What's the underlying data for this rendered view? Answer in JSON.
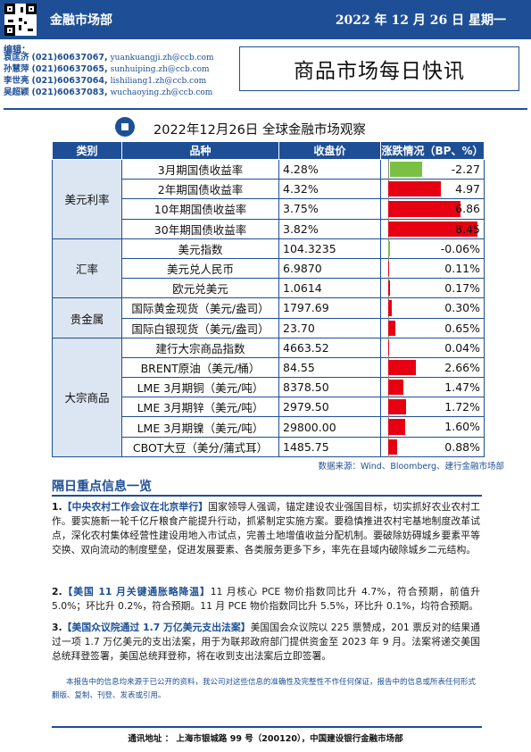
{
  "header": {
    "department": "金融市场部",
    "date": "2022 年 12 月 26 日  星期一"
  },
  "editors": {
    "label": "编辑：",
    "people": [
      {
        "name": "袁匡济",
        "phone": "(021)60637067,",
        "email": "yuankuangji.zh@ccb.com"
      },
      {
        "name": "孙慧萍",
        "phone": "(021)60637065,",
        "email": "sunhuiping.zh@ccb.com"
      },
      {
        "name": "李世亮",
        "phone": "(021)60637064,",
        "email": "lishiliang1.zh@ccb.com"
      },
      {
        "name": "吴超颖",
        "phone": "(021)60637083,",
        "email": "wuchaoying.zh@ccb.com"
      }
    ]
  },
  "report_title": "商品市场每日快讯",
  "table": {
    "title": "2022年12月26日 全球金融市场观察",
    "headers": [
      "类别",
      "品种",
      "收盘价",
      "涨跌情况（BP、%）"
    ],
    "bar_colors": {
      "positive": "#e60012",
      "negative": "#7ac143"
    },
    "groups": [
      {
        "category": "美元利率",
        "rows": [
          {
            "product": "3月期国债收益率",
            "close": "4.28%",
            "change_text": "-2.27",
            "change": -2.27
          },
          {
            "product": "2年期国债收益率",
            "close": "4.32%",
            "change_text": "4.97",
            "change": 4.97
          },
          {
            "product": "10年期国债收益率",
            "close": "3.75%",
            "change_text": "6.86",
            "change": 6.86
          },
          {
            "product": "30年期国债收益率",
            "close": "3.82%",
            "change_text": "8.45",
            "change": 8.45
          }
        ]
      },
      {
        "category": "汇率",
        "rows": [
          {
            "product": "美元指数",
            "close": "104.3235",
            "change_text": "-0.06%",
            "change": -0.06
          },
          {
            "product": "美元兑人民币",
            "close": "6.9870",
            "change_text": "0.11%",
            "change": 0.11
          },
          {
            "product": "欧元兑美元",
            "close": "1.0614",
            "change_text": "0.17%",
            "change": 0.17
          }
        ]
      },
      {
        "category": "贵金属",
        "rows": [
          {
            "product": "国际黄金现货（美元/盎司）",
            "close": "1797.69",
            "change_text": "0.30%",
            "change": 0.3
          },
          {
            "product": "国际白银现货（美元/盎司）",
            "close": "23.70",
            "change_text": "0.65%",
            "change": 0.65
          }
        ]
      },
      {
        "category": "大宗商品",
        "rows": [
          {
            "product": "建行大宗商品指数",
            "close": "4663.52",
            "change_text": "0.04%",
            "change": 0.04
          },
          {
            "product": "BRENT原油（美元/桶）",
            "close": "84.55",
            "change_text": "2.66%",
            "change": 2.66
          },
          {
            "product": "LME 3月期铜（美元/吨）",
            "close": "8378.50",
            "change_text": "1.47%",
            "change": 1.47
          },
          {
            "product": "LME 3月期锌（美元/吨）",
            "close": "2979.50",
            "change_text": "1.72%",
            "change": 1.72
          },
          {
            "product": "LME 3月期镍（美元/吨）",
            "close": "29800.00",
            "change_text": "1.60%",
            "change": 1.6
          },
          {
            "product": "CBOT大豆（美分/蒲式耳）",
            "close": "1485.75",
            "change_text": "0.88%",
            "change": 0.88
          }
        ]
      }
    ],
    "source": "数据来源：Wind、Bloomberg、建行金融市场部"
  },
  "section": {
    "title": "隔日重点信息一览",
    "items": [
      {
        "num": "1.",
        "headline": "【中央农村工作会议在北京举行】",
        "body": "国家领导人强调，锚定建设农业强国目标，切实抓好农业农村工作。要实施新一轮千亿斤粮食产能提升行动，抓紧制定实施方案。要稳慎推进农村宅基地制度改革试点，深化农村集体经营性建设用地入市试点，完善土地增值收益分配机制。要破除妨碍城乡要素平等交换、双向流动的制度壁垒，促进发展要素、各类服务更多下乡，率先在县域内破除城乡二元结构。"
      },
      {
        "num": "2.",
        "headline": "【美国 11 月关键通胀略降温】",
        "body": "11 月核心 PCE 物价指数同比升 4.7%，符合预期，前值升 5.0%；环比升 0.2%，符合预期。11 月 PCE 物价指数同比升 5.5%，环比升 0.1%，均符合预期。"
      },
      {
        "num": "3.",
        "headline": "【美国众议院通过 1.7 万亿美元支出法案】",
        "body": "美国国会众议院以 225 票赞成，201 票反对的结果通过一项 1.7 万亿美元的支出法案，用于为联邦政府部门提供资金至 2023 年 9 月。法案将递交美国总统拜登签署，美国总统拜登称，将在收到支出法案后立即签署。"
      }
    ]
  },
  "disclaimer": "本报告中的信息均来源于已公开的资料，我公司对这些信息的准确性及完整性不作任何保证，报告中的信息或所表任何形式翻版、复制、刊登、发表或引用。",
  "footer": "通讯地址 ：  上海市银城路 99 号（200120），中国建设银行金融市场部"
}
